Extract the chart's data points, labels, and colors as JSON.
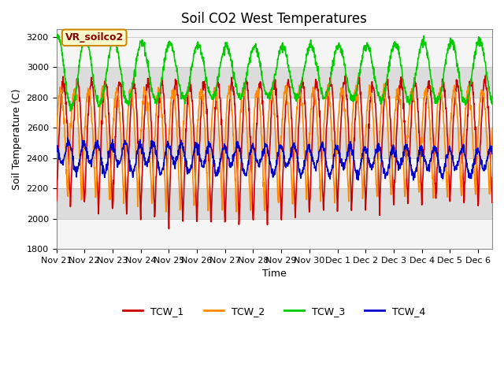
{
  "title": "Soil CO2 West Temperatures",
  "ylabel": "Soil Temperature (C)",
  "xlabel": "Time",
  "ylim": [
    1800,
    3250
  ],
  "tick_labels": [
    "Nov 21",
    "Nov 22",
    "Nov 23",
    "Nov 24",
    "Nov 25",
    "Nov 26",
    "Nov 27",
    "Nov 28",
    "Nov 29",
    "Nov 30",
    "Dec 1",
    "Dec 2",
    "Dec 3",
    "Dec 4",
    "Dec 5",
    "Dec 6"
  ],
  "colors": {
    "TCW_1": "#CC0000",
    "TCW_2": "#FF8800",
    "TCW_3": "#00CC00",
    "TCW_4": "#0000CC"
  },
  "line_width": 1.2,
  "annotation_text": "VR_soilco2",
  "annotation_bbox_face": "#FFFFCC",
  "annotation_bbox_edge": "#CC8800",
  "band_ranges": [
    [
      2000,
      2200
    ],
    [
      2400,
      2600
    ],
    [
      2800,
      3000
    ]
  ],
  "band_color": "#DCDCDC",
  "title_fontsize": 12,
  "label_fontsize": 9,
  "tick_fontsize": 8,
  "yticks": [
    1800,
    2000,
    2200,
    2400,
    2600,
    2800,
    3000,
    3200
  ]
}
